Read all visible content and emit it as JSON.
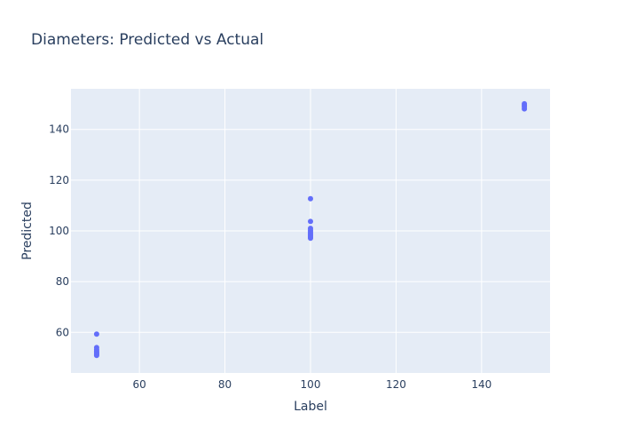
{
  "chart_data": {
    "type": "scatter",
    "title": "Diameters: Predicted vs Actual",
    "xlabel": "Label",
    "ylabel": "Predicted",
    "xlim": [
      44,
      156
    ],
    "ylim": [
      44,
      156
    ],
    "x_ticks": [
      60,
      80,
      100,
      120,
      140
    ],
    "y_ticks": [
      60,
      80,
      100,
      120,
      140
    ],
    "grid": true,
    "colors": {
      "marker": "#636efa",
      "plot_background": "#e5ecf6",
      "grid": "#ffffff",
      "text": "#2a3f5f"
    },
    "series": [
      {
        "x": [
          50,
          50,
          50,
          50,
          50,
          50,
          50,
          50,
          100,
          100,
          100,
          100,
          100,
          100,
          100,
          100,
          100,
          100,
          150,
          150,
          150,
          150
        ],
        "y": [
          59.3,
          54.0,
          53.2,
          52.6,
          52.1,
          51.7,
          51.3,
          50.9,
          112.7,
          103.7,
          101.0,
          100.2,
          99.6,
          99.0,
          98.5,
          98.0,
          97.5,
          97.1,
          150.1,
          149.5,
          148.9,
          148.1
        ]
      }
    ]
  }
}
